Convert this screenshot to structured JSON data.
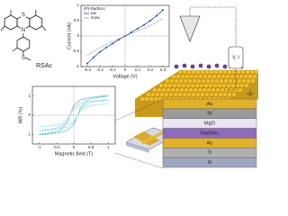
{
  "chart_data": [
    {
      "type": "line",
      "title": "(P)-RadSAc",
      "x_label": "Voltage (V)",
      "y_label": "Current (nA)",
      "xlim": [
        -0.35,
        0.35
      ],
      "xticks": [
        -0.3,
        -0.2,
        -0.1,
        0,
        0.1,
        0.2,
        0.3
      ],
      "ylim": [
        -1,
        1
      ],
      "yticks": [
        -1,
        -0.5,
        0,
        0.5,
        1
      ],
      "x": [
        -0.3,
        -0.25,
        -0.2,
        -0.15,
        -0.1,
        -0.05,
        0,
        0.05,
        0.1,
        0.15,
        0.2,
        0.25,
        0.3
      ],
      "series": [
        {
          "name": "Iav",
          "color": "#1f4fa8",
          "markers": true,
          "values": [
            -0.9,
            -0.7,
            -0.52,
            -0.38,
            -0.25,
            -0.12,
            0,
            0.12,
            0.24,
            0.36,
            0.5,
            0.66,
            0.85
          ]
        },
        {
          "name": "Imax",
          "color": "#9a9a9a",
          "markers": false,
          "values": [
            -0.62,
            -0.5,
            -0.38,
            -0.28,
            -0.18,
            -0.09,
            0,
            0.08,
            0.16,
            0.25,
            0.34,
            0.45,
            0.58
          ]
        }
      ]
    },
    {
      "type": "line",
      "x_label": "Magnetic field (T)",
      "y_label": "MR (%)",
      "xlim": [
        -1.2,
        1.2
      ],
      "xticks": [
        -1,
        -0.5,
        0,
        0.5,
        1
      ],
      "ylim": [
        -1.5,
        1.5
      ],
      "yticks": [
        -1,
        0,
        1
      ],
      "x": [
        -1,
        -0.8,
        -0.6,
        -0.4,
        -0.2,
        0,
        0.2,
        0.4,
        0.6,
        0.8,
        1
      ],
      "series": [
        {
          "color": "#1b9fc4",
          "values": [
            -1.0,
            -1.0,
            -0.95,
            -0.9,
            -0.8,
            -0.5,
            0.4,
            0.8,
            0.9,
            0.95,
            1.0
          ]
        },
        {
          "color": "#1b9fc4",
          "values": [
            -1.0,
            -0.95,
            -0.9,
            -0.8,
            -0.4,
            0.5,
            0.8,
            0.9,
            0.95,
            1.0,
            1.0
          ]
        },
        {
          "color": "#5cc6e0",
          "values": [
            -0.8,
            -0.78,
            -0.75,
            -0.7,
            -0.62,
            -0.4,
            0.3,
            0.62,
            0.72,
            0.76,
            0.8
          ]
        },
        {
          "color": "#5cc6e0",
          "values": [
            -0.8,
            -0.76,
            -0.72,
            -0.62,
            -0.3,
            0.4,
            0.62,
            0.7,
            0.75,
            0.78,
            0.8
          ]
        },
        {
          "color": "#9fe0ef",
          "values": [
            -0.6,
            -0.58,
            -0.55,
            -0.5,
            -0.45,
            -0.3,
            0.2,
            0.45,
            0.52,
            0.56,
            0.6
          ]
        },
        {
          "color": "#9fe0ef",
          "values": [
            -0.6,
            -0.56,
            -0.52,
            -0.45,
            -0.2,
            0.3,
            0.45,
            0.5,
            0.55,
            0.58,
            0.6
          ]
        }
      ]
    }
  ],
  "molecule": {
    "atoms": [
      "S",
      "N",
      "S"
    ],
    "label": "RSAc"
  },
  "stm": {
    "label": "V, I"
  },
  "stack": {
    "layers": [
      "Au",
      "Ni",
      "MgO",
      "RadSAc",
      "Au",
      "Ti",
      "Si"
    ]
  }
}
